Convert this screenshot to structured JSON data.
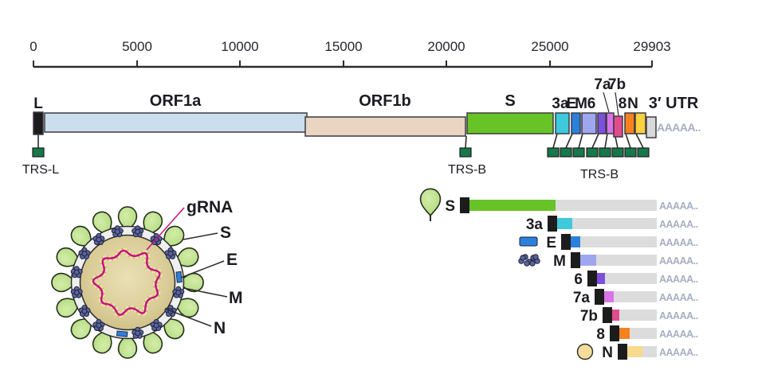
{
  "figure": {
    "polya": "AAAAA..",
    "background": "#ffffff"
  },
  "scale": {
    "ticks": [
      "0",
      "5000",
      "10000",
      "15000",
      "20000",
      "25000",
      "29903"
    ],
    "max_label": "29903"
  },
  "genome": {
    "genes": [
      {
        "id": "leader",
        "label": "L",
        "color": "#1c1c1c"
      },
      {
        "id": "orf1a",
        "label": "ORF1a",
        "color": "#cbdeee"
      },
      {
        "id": "orf1b",
        "label": "ORF1b",
        "color": "#e9d5c2"
      },
      {
        "id": "s",
        "label": "S",
        "color": "#68c327"
      },
      {
        "id": "orf3a",
        "label": "3a",
        "color": "#3ec9dc"
      },
      {
        "id": "e",
        "label": "E",
        "color": "#2b80dc"
      },
      {
        "id": "m",
        "label": "M",
        "color": "#9ea6f0"
      },
      {
        "id": "orf6",
        "label": "6",
        "color": "#7c50dc"
      },
      {
        "id": "orf7a",
        "label": "7a",
        "color": "#d873e8"
      },
      {
        "id": "orf7b",
        "label": "7b",
        "color": "#e04d8e"
      },
      {
        "id": "orf8",
        "label": "8",
        "color": "#f5821e"
      },
      {
        "id": "n",
        "label": "N",
        "color": "#fbd13e"
      },
      {
        "id": "utr3",
        "label": "3′ UTR",
        "color": "#d9d9d9"
      }
    ],
    "trs": {
      "leader_label": "TRS-L",
      "body_label": "TRS-B",
      "marker_color": "#17784a"
    }
  },
  "virion": {
    "labels": {
      "grna": "gRNA",
      "spike": "S",
      "envelope": "E",
      "membrane": "M",
      "nucleocapsid": "N"
    },
    "colors": {
      "spike": "#bfe193",
      "membrane_protein": "#5a64a0",
      "envelope_protein": "#2b80dc",
      "rna_strand": "#c2107e",
      "rna_beads": "#eee0ab",
      "interior": "#d9cc97"
    }
  },
  "sgrna": {
    "rows": [
      {
        "label": "S",
        "color": "#68c327",
        "icon": "spike-icon"
      },
      {
        "label": "3a",
        "color": "#3ec9dc",
        "icon": null
      },
      {
        "label": "E",
        "color": "#2b80dc",
        "icon": "envelope-icon"
      },
      {
        "label": "M",
        "color": "#9ea6f0",
        "icon": "membrane-icon"
      },
      {
        "label": "6",
        "color": "#7c50dc",
        "icon": null
      },
      {
        "label": "7a",
        "color": "#d873e8",
        "icon": null
      },
      {
        "label": "7b",
        "color": "#e04d8e",
        "icon": null
      },
      {
        "label": "8",
        "color": "#f5821e",
        "icon": null
      },
      {
        "label": "N",
        "color": "#f7da8c",
        "icon": "nucleocapsid-icon"
      }
    ],
    "tail_color": "#dcdcdc",
    "polya": "AAAAA.."
  }
}
